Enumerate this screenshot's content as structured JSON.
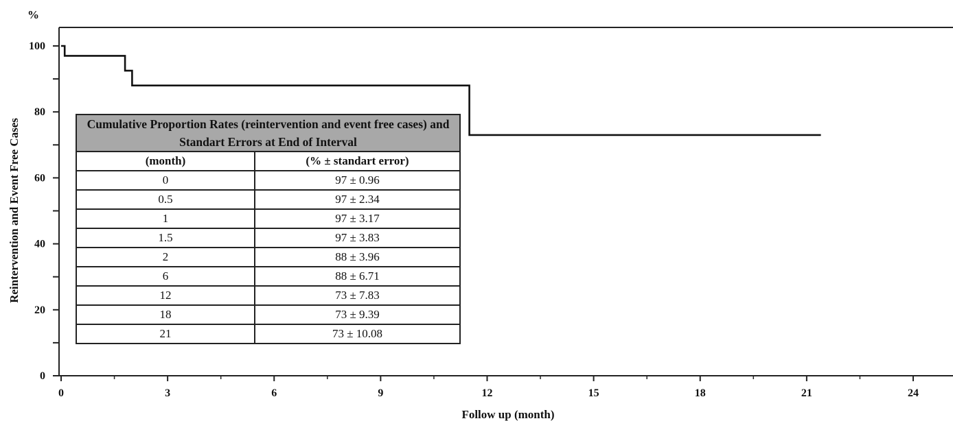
{
  "chart_data": {
    "type": "line",
    "step": true,
    "y_unit_label": "%",
    "ylabel": "Reintervention and Event Free Cases",
    "xlabel": "Follow up (month)",
    "xlim": [
      0,
      24
    ],
    "ylim": [
      0,
      100
    ],
    "x_ticks": [
      0,
      3,
      6,
      9,
      12,
      15,
      18,
      21,
      24
    ],
    "y_ticks": [
      0,
      20,
      40,
      60,
      80,
      100
    ],
    "grid": false,
    "series": [
      {
        "x": [
          0,
          0.1,
          0.1,
          1.8,
          1.8,
          2,
          2,
          11.5,
          11.5,
          21.4
        ],
        "y": [
          100,
          100,
          97,
          97,
          92.5,
          92.5,
          88,
          88,
          73,
          73
        ],
        "color": "#111111"
      }
    ]
  },
  "table": {
    "title": "Cumulative Proportion Rates (reintervention and event free cases) and Standart Errors  at End of Interval",
    "columns": [
      "(month)",
      "(% ± standart error)"
    ],
    "rows": [
      [
        "0",
        "97 ± 0.96"
      ],
      [
        "0.5",
        "97 ± 2.34"
      ],
      [
        "1",
        "97 ± 3.17"
      ],
      [
        "1.5",
        "97 ± 3.83"
      ],
      [
        "2",
        "88 ± 3.96"
      ],
      [
        "6",
        "88 ± 6.71"
      ],
      [
        "12",
        "73 ± 7.83"
      ],
      [
        "18",
        "73 ± 9.39"
      ],
      [
        "21",
        "73 ± 10.08"
      ]
    ]
  }
}
